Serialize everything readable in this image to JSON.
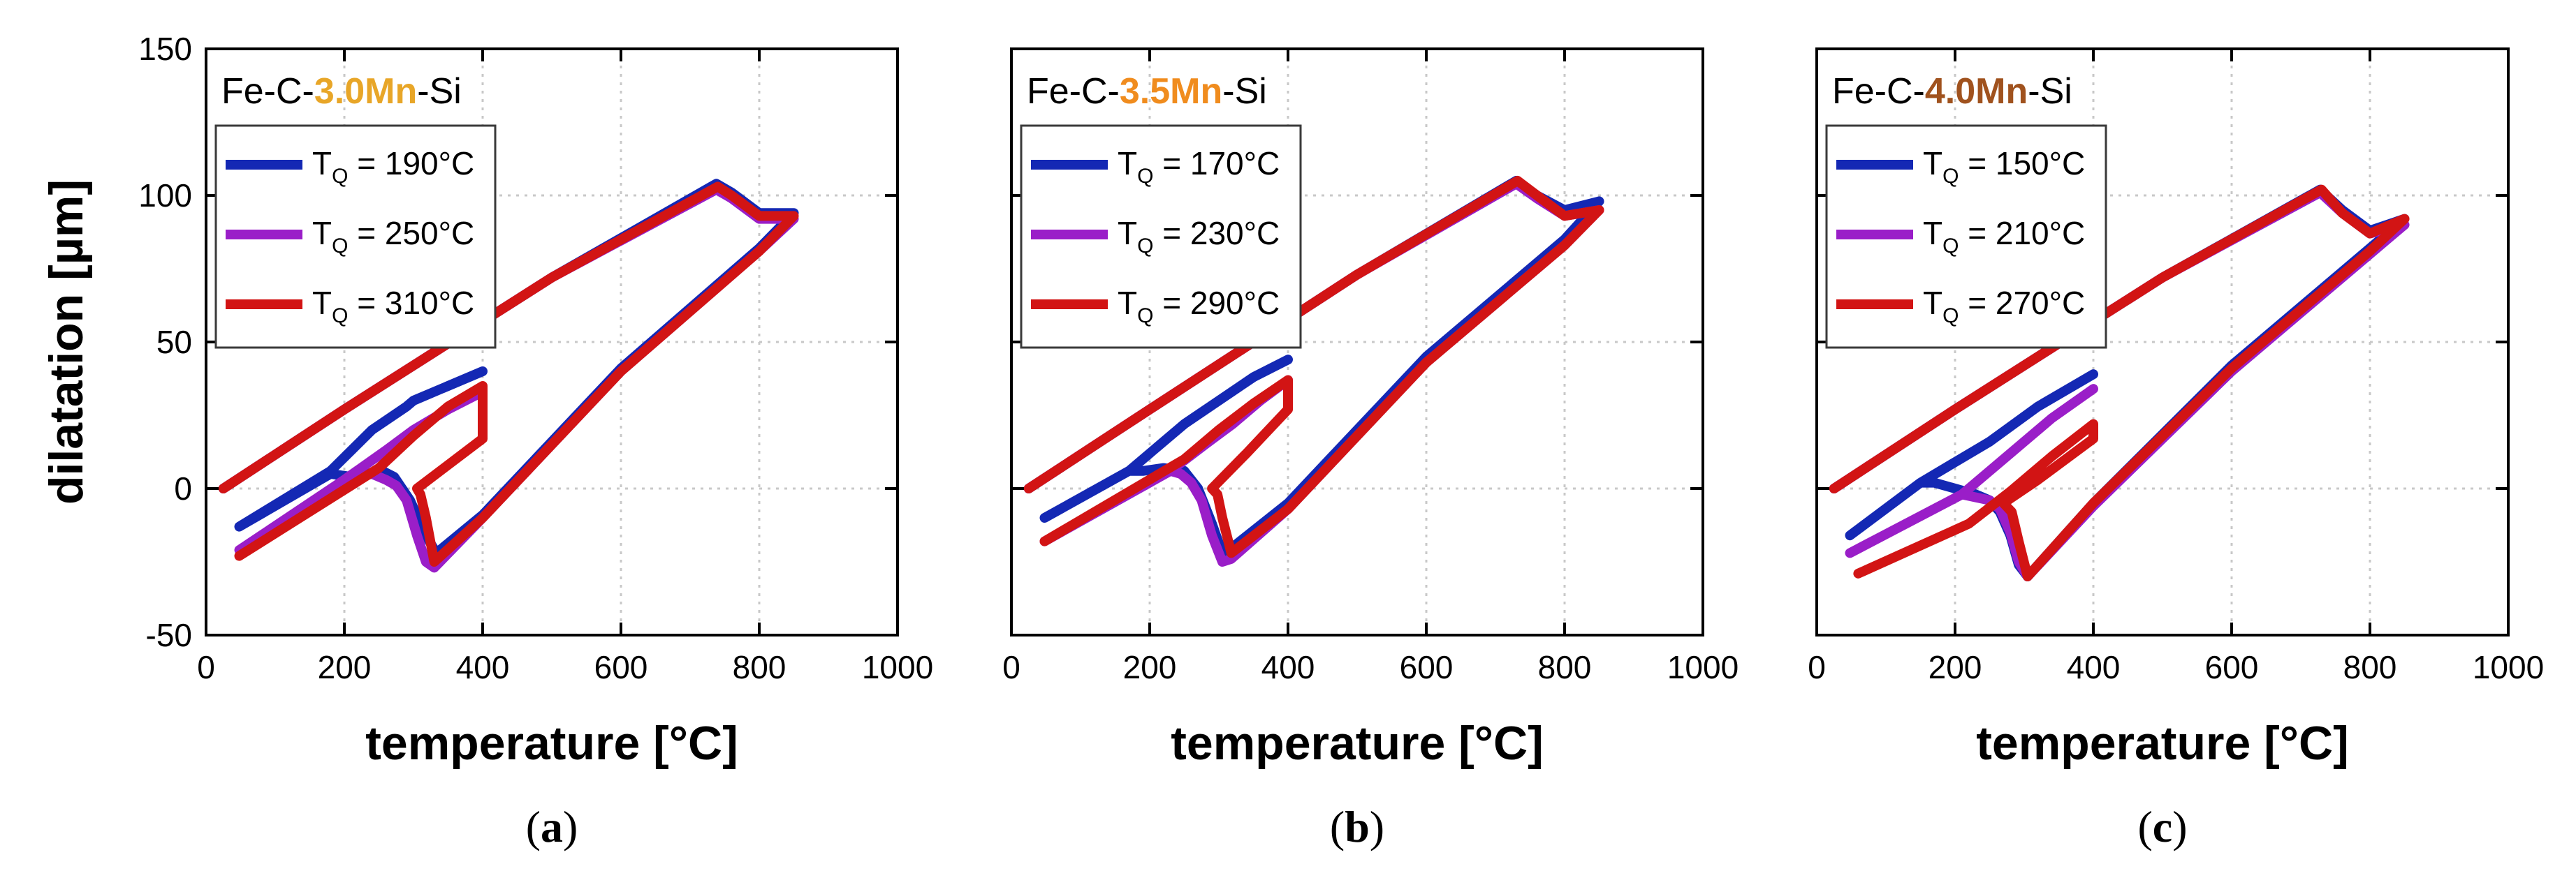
{
  "chart_data": [
    {
      "type": "line",
      "title_parts": {
        "pre": "Fe-C-",
        "highlight": "3.0Mn",
        "post": "-Si"
      },
      "highlight_color": "#e8a628",
      "caption": {
        "open": "(",
        "letter": "a",
        "close": ")"
      },
      "xlabel": "temperature [°C]",
      "ylabel": "dilatation [µm]",
      "xlim": [
        0,
        1000
      ],
      "ylim": [
        -50,
        150
      ],
      "xticks": [
        0,
        200,
        400,
        600,
        800,
        1000
      ],
      "yticks": [
        -50,
        0,
        50,
        100,
        150
      ],
      "grid": true,
      "legend_placement": "upper-left",
      "series": [
        {
          "name": "T",
          "sub": "Q",
          "value": " = 190°C",
          "color": "#1428b4",
          "x": [
            25,
            200,
            500,
            738,
            760,
            800,
            850,
            800,
            600,
            400,
            333,
            318,
            295,
            272,
            255,
            210,
            180,
            48,
            180,
            240,
            290,
            300,
            350,
            400
          ],
          "y": [
            0,
            27,
            72,
            104,
            101,
            94,
            94,
            82,
            41,
            -9,
            -22,
            -16,
            -4,
            4,
            6,
            4,
            5,
            -13,
            6,
            20,
            28,
            30,
            35,
            40
          ]
        },
        {
          "name": "T",
          "sub": "Q",
          "value": " = 250°C",
          "color": "#9a1ec8",
          "x": [
            25,
            200,
            500,
            738,
            760,
            800,
            850,
            800,
            600,
            400,
            330,
            318,
            305,
            290,
            275,
            260,
            240,
            220,
            200,
            48,
            200,
            260,
            300,
            350,
            400
          ],
          "y": [
            0,
            27,
            72,
            102,
            99,
            92,
            92,
            81,
            40,
            -10,
            -27,
            -25,
            -16,
            -4,
            1,
            3,
            5,
            4,
            3,
            -21,
            3,
            13,
            20,
            27,
            33
          ]
        },
        {
          "name": "T",
          "sub": "Q",
          "value": " = 310°C",
          "color": "#d21414",
          "x": [
            25,
            200,
            500,
            740,
            760,
            800,
            850,
            800,
            600,
            400,
            330,
            318,
            310,
            305,
            400,
            400,
            400,
            350,
            300,
            250,
            48
          ],
          "y": [
            0,
            27,
            72,
            103,
            100,
            93,
            93,
            81,
            40,
            -10,
            -25,
            -10,
            -2,
            0,
            17,
            35,
            35,
            28,
            18,
            7,
            -23
          ]
        }
      ]
    },
    {
      "type": "line",
      "title_parts": {
        "pre": "Fe-C-",
        "highlight": "3.5Mn",
        "post": "-Si"
      },
      "highlight_color": "#f08c1e",
      "caption": {
        "open": "(",
        "letter": "b",
        "close": ")"
      },
      "xlabel": "temperature [°C]",
      "ylabel": "dilatation [µm]",
      "xlim": [
        0,
        1000
      ],
      "ylim": [
        -50,
        150
      ],
      "xticks": [
        0,
        200,
        400,
        600,
        800,
        1000
      ],
      "yticks": [
        -50,
        0,
        50,
        100,
        150
      ],
      "grid": true,
      "legend_placement": "upper-left",
      "series": [
        {
          "name": "T",
          "sub": "Q",
          "value": " = 170°C",
          "color": "#1428b4",
          "x": [
            25,
            200,
            500,
            730,
            760,
            800,
            850,
            800,
            600,
            400,
            320,
            305,
            290,
            270,
            250,
            220,
            190,
            170,
            48,
            170,
            250,
            300,
            350,
            400
          ],
          "y": [
            0,
            27,
            73,
            105,
            100,
            95,
            98,
            85,
            45,
            -5,
            -20,
            -22,
            -12,
            0,
            6,
            7,
            6,
            6,
            -10,
            6,
            22,
            30,
            38,
            44
          ]
        },
        {
          "name": "T",
          "sub": "Q",
          "value": " = 230°C",
          "color": "#9a1ec8",
          "x": [
            25,
            200,
            500,
            730,
            760,
            800,
            850,
            800,
            600,
            400,
            318,
            305,
            290,
            275,
            260,
            245,
            230,
            48,
            230,
            280,
            320,
            360,
            400
          ],
          "y": [
            0,
            27,
            73,
            104,
            99,
            93,
            95,
            83,
            43,
            -7,
            -24,
            -25,
            -16,
            -4,
            2,
            5,
            6,
            -18,
            6,
            15,
            22,
            30,
            37
          ]
        },
        {
          "name": "T",
          "sub": "Q",
          "value": " = 290°C",
          "color": "#d21414",
          "x": [
            25,
            200,
            500,
            732,
            760,
            800,
            850,
            800,
            600,
            400,
            318,
            305,
            298,
            290,
            340,
            400,
            400,
            400,
            350,
            300,
            250,
            48
          ],
          "y": [
            0,
            27,
            73,
            105,
            100,
            93,
            95,
            83,
            43,
            -7,
            -22,
            -10,
            -2,
            0,
            12,
            27,
            37,
            37,
            29,
            20,
            10,
            -18
          ]
        }
      ]
    },
    {
      "type": "line",
      "title_parts": {
        "pre": "Fe-C-",
        "highlight": "4.0Mn",
        "post": "-Si"
      },
      "highlight_color": "#a0521e",
      "caption": {
        "open": "(",
        "letter": "c",
        "close": ")"
      },
      "xlabel": "temperature [°C]",
      "ylabel": "dilatation [µm]",
      "xlim": [
        0,
        1000
      ],
      "ylim": [
        -50,
        150
      ],
      "xticks": [
        0,
        200,
        400,
        600,
        800,
        1000
      ],
      "yticks": [
        -50,
        0,
        50,
        100,
        150
      ],
      "grid": true,
      "legend_placement": "upper-left",
      "series": [
        {
          "name": "T",
          "sub": "Q",
          "value": " = 150°C",
          "color": "#1428b4",
          "x": [
            25,
            200,
            500,
            728,
            760,
            800,
            850,
            800,
            600,
            400,
            305,
            292,
            280,
            265,
            250,
            230,
            200,
            170,
            150,
            48,
            150,
            250,
            320,
            400
          ],
          "y": [
            0,
            27,
            72,
            102,
            95,
            88,
            92,
            82,
            42,
            -5,
            -30,
            -26,
            -16,
            -8,
            -4,
            -2,
            0,
            2,
            2,
            -16,
            2,
            16,
            28,
            39
          ]
        },
        {
          "name": "T",
          "sub": "Q",
          "value": " = 210°C",
          "color": "#9a1ec8",
          "x": [
            25,
            200,
            500,
            728,
            760,
            800,
            850,
            800,
            600,
            400,
            305,
            292,
            280,
            265,
            250,
            230,
            210,
            48,
            210,
            280,
            340,
            400
          ],
          "y": [
            0,
            27,
            72,
            101,
            94,
            87,
            90,
            80,
            40,
            -6,
            -30,
            -25,
            -15,
            -7,
            -4,
            -3,
            -2,
            -22,
            -2,
            12,
            24,
            34
          ]
        },
        {
          "name": "T",
          "sub": "Q",
          "value": " = 270°C",
          "color": "#d21414",
          "x": [
            25,
            200,
            500,
            730,
            760,
            800,
            850,
            800,
            600,
            400,
            305,
            292,
            282,
            270,
            320,
            400,
            400,
            400,
            340,
            280,
            220,
            60
          ],
          "y": [
            0,
            27,
            72,
            102,
            94,
            87,
            92,
            81,
            41,
            -5,
            -30,
            -18,
            -8,
            -5,
            3,
            17,
            22,
            22,
            11,
            -1,
            -12,
            -29
          ]
        }
      ]
    }
  ]
}
